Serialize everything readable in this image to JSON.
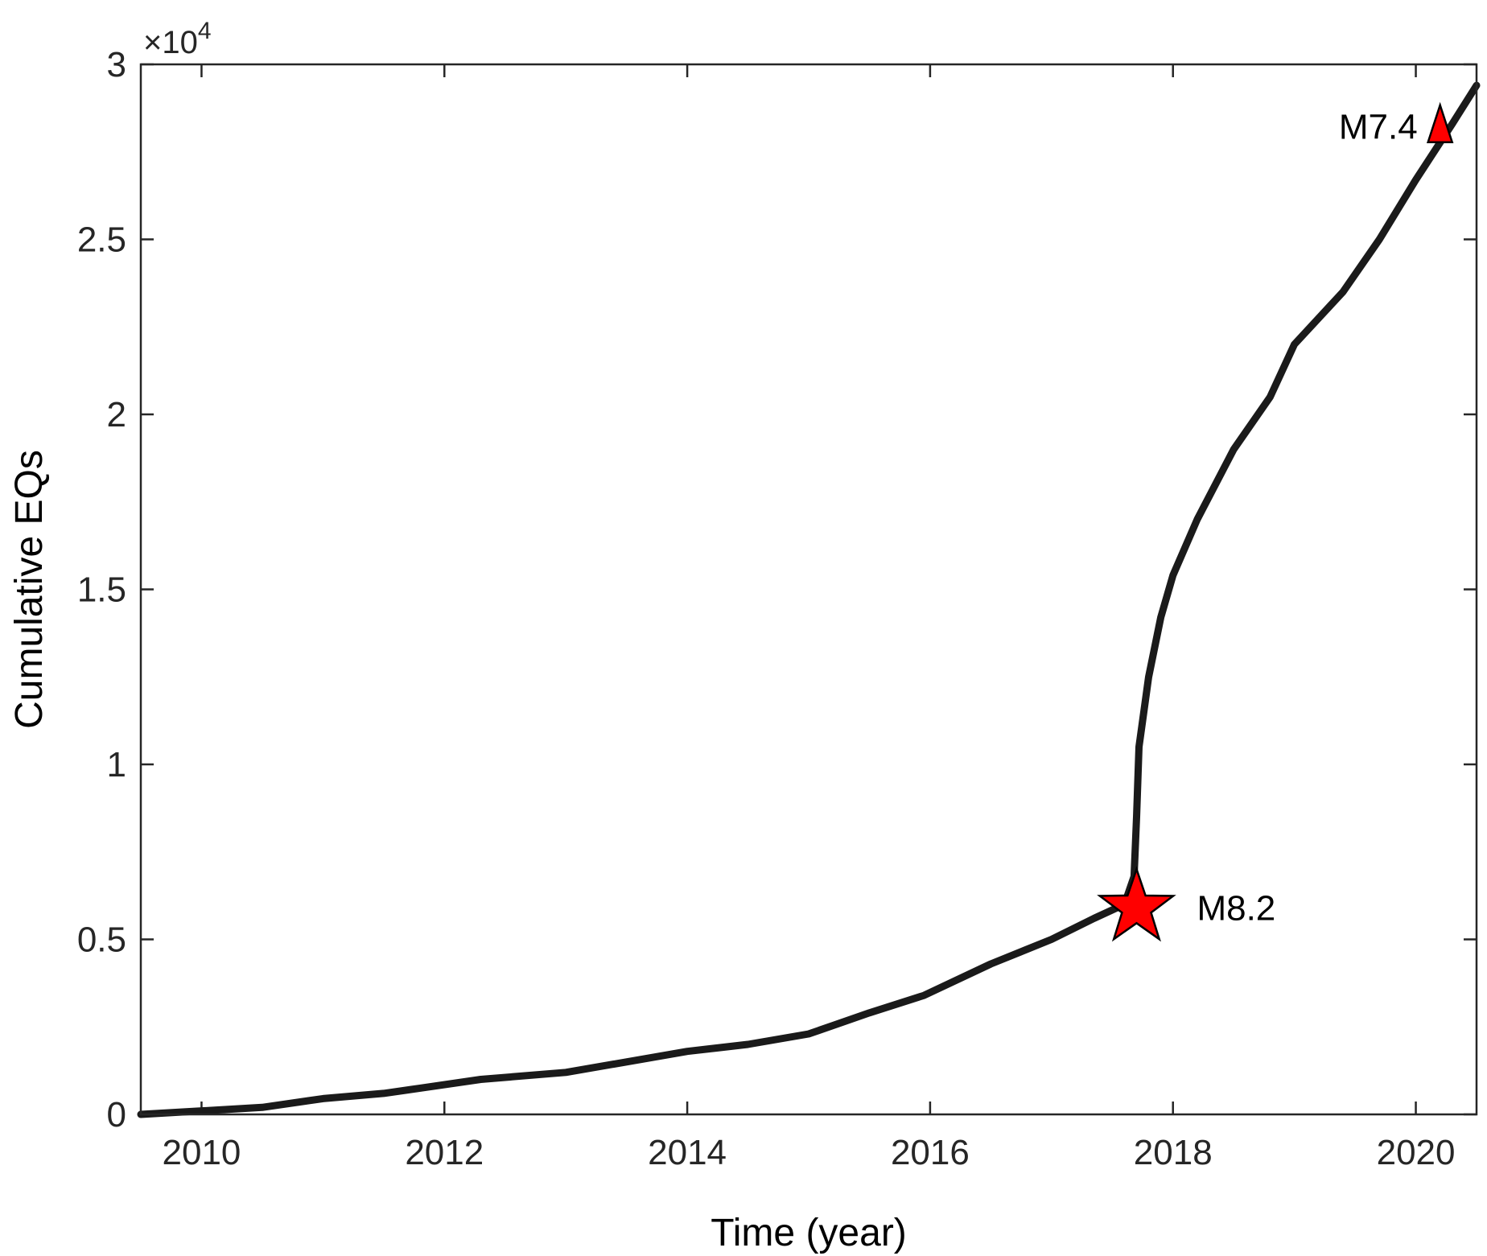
{
  "chart_data": {
    "type": "line",
    "xlabel": "Time (year)",
    "ylabel": "Cumulative EQs",
    "y_exponent_label": "×10",
    "y_exponent_power": "4",
    "xlim": [
      2009.5,
      2020.5
    ],
    "ylim": [
      0,
      30000
    ],
    "x_ticks": [
      2010,
      2012,
      2014,
      2016,
      2018,
      2020
    ],
    "x_tick_labels": [
      "2010",
      "2012",
      "2014",
      "2016",
      "2018",
      "2020"
    ],
    "y_ticks": [
      0,
      5000,
      10000,
      15000,
      20000,
      25000,
      30000
    ],
    "y_tick_labels": [
      "0",
      "0.5",
      "1",
      "1.5",
      "2",
      "2.5",
      "3"
    ],
    "grid": false,
    "series": [
      {
        "color": "#1a1a1a",
        "x": [
          2009.5,
          2010.5,
          2011.0,
          2011.5,
          2011.8,
          2012.3,
          2013.0,
          2013.5,
          2014.0,
          2014.5,
          2015.0,
          2015.5,
          2015.95,
          2016.5,
          2017.0,
          2017.35,
          2017.6,
          2017.68,
          2017.7,
          2017.72,
          2017.8,
          2017.9,
          2018.0,
          2018.2,
          2018.5,
          2018.8,
          2019.0,
          2019.4,
          2019.7,
          2020.0,
          2020.3,
          2020.5
        ],
        "y": [
          0,
          200,
          450,
          600,
          750,
          1000,
          1200,
          1500,
          1800,
          2000,
          2300,
          2900,
          3400,
          4300,
          5000,
          5600,
          6000,
          6800,
          8500,
          10500,
          12500,
          14200,
          15400,
          17000,
          19000,
          20500,
          22000,
          23500,
          25000,
          26700,
          28300,
          29400
        ]
      }
    ],
    "annotations": [
      {
        "label": "M8.2",
        "x": 2017.7,
        "y": 5900,
        "marker": "star",
        "color": "#ff0000"
      },
      {
        "label": "M7.4",
        "x": 2020.2,
        "y": 28200,
        "marker": "triangle",
        "color": "#ff0000"
      }
    ]
  }
}
